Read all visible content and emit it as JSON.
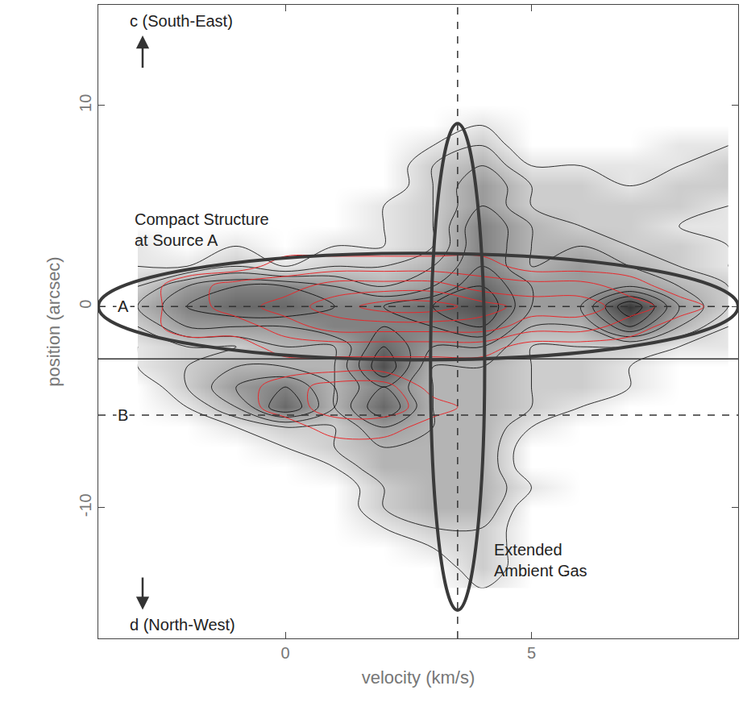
{
  "chart_data": {
    "type": "contour",
    "x_label": "velocity (km/s)",
    "y_label": "position (arcsec)",
    "xlim": [
      -3.8,
      9.2
    ],
    "ylim": [
      -16.5,
      15
    ],
    "xticks": [
      0,
      5
    ],
    "yticks": [
      -10,
      0,
      10
    ],
    "grid": false,
    "image": {
      "color": "#000000",
      "zlim": [
        0,
        9
      ],
      "levels": {
        "start": 1,
        "end": 8,
        "step": 1
      },
      "x": [
        -3,
        -2,
        -1,
        0,
        1,
        2,
        3,
        4,
        5,
        6,
        7,
        8,
        9
      ],
      "y": [
        -14,
        -13,
        -12,
        -11,
        -10,
        -9,
        -8,
        -7,
        -6,
        -5,
        -4,
        -3,
        -2,
        -1,
        0,
        1,
        2,
        3,
        4,
        5,
        6,
        7,
        8,
        9,
        10
      ],
      "z": [
        [
          0,
          0,
          0,
          0,
          0,
          0,
          0,
          1,
          0,
          0,
          0,
          0,
          0
        ],
        [
          0,
          0,
          0,
          0,
          0,
          0,
          0,
          2,
          0,
          0,
          0,
          0,
          0
        ],
        [
          0,
          0,
          0,
          0,
          0,
          0,
          1,
          2,
          0,
          0,
          0,
          0,
          0
        ],
        [
          0,
          0,
          0,
          0,
          0,
          1,
          2,
          2,
          0,
          0,
          0,
          0,
          0
        ],
        [
          0,
          0,
          0,
          0,
          0,
          2,
          3,
          3,
          0,
          0,
          0,
          0,
          0
        ],
        [
          0,
          0,
          0,
          0,
          0,
          2,
          3,
          3,
          1,
          0,
          0,
          0,
          0
        ],
        [
          0,
          0,
          0,
          0,
          1,
          3,
          3,
          3,
          0,
          0,
          0,
          0,
          0
        ],
        [
          0,
          0,
          0,
          1,
          2,
          3,
          3,
          3,
          0,
          0,
          0,
          0,
          0
        ],
        [
          0,
          0,
          1,
          2,
          2,
          4,
          3,
          3,
          1,
          0,
          0,
          0,
          0
        ],
        [
          0,
          1,
          3,
          6,
          3,
          6,
          3,
          3,
          2,
          1,
          0,
          0,
          0
        ],
        [
          0,
          2,
          4,
          5,
          3,
          5,
          3,
          3,
          2,
          2,
          1,
          0,
          0
        ],
        [
          1,
          2,
          3,
          3,
          3,
          7,
          3,
          3,
          2,
          2,
          1,
          0,
          0
        ],
        [
          1,
          2,
          2,
          3,
          3,
          6,
          4,
          4,
          2,
          2,
          2,
          1,
          1
        ],
        [
          2,
          4,
          4,
          4,
          5,
          5,
          5,
          6,
          3,
          3,
          6,
          3,
          1
        ],
        [
          3,
          5,
          6,
          6,
          5,
          5,
          6,
          7,
          4,
          4,
          8,
          4,
          2
        ],
        [
          2,
          4,
          5,
          5,
          4,
          3,
          4,
          6,
          4,
          4,
          4,
          3,
          2
        ],
        [
          1,
          1,
          2,
          1,
          2,
          2,
          3,
          5,
          3,
          4,
          3,
          2,
          1
        ],
        [
          1,
          0,
          1,
          0,
          1,
          1,
          2,
          5,
          3,
          3,
          2,
          2,
          1
        ],
        [
          0,
          0,
          0,
          0,
          0,
          1,
          2,
          5,
          3,
          2,
          2,
          1,
          1
        ],
        [
          0,
          0,
          0,
          0,
          0,
          1,
          2,
          4,
          2,
          2,
          2,
          2,
          1
        ],
        [
          0,
          0,
          0,
          0,
          0,
          0,
          2,
          4,
          2,
          2,
          1,
          2,
          2
        ],
        [
          0,
          0,
          0,
          0,
          0,
          0,
          2,
          3,
          1,
          1,
          1,
          1,
          2
        ],
        [
          0,
          0,
          0,
          0,
          0,
          0,
          1,
          2,
          0,
          0,
          0,
          1,
          1
        ],
        [
          0,
          0,
          0,
          0,
          0,
          0,
          0,
          1,
          0,
          0,
          0,
          0,
          0
        ],
        [
          0,
          0,
          0,
          0,
          0,
          0,
          0,
          0,
          0,
          0,
          0,
          0,
          0
        ]
      ]
    },
    "red_contours": {
      "color": "#e8282b",
      "levels": {
        "start": 0.5,
        "end": 4.5,
        "step": 1
      },
      "x": [
        -3,
        -2,
        -1,
        0,
        1,
        2,
        3,
        4,
        5,
        6,
        7,
        8,
        9
      ],
      "y": [
        -8,
        -7,
        -6,
        -5,
        -4,
        -3,
        -2,
        -1,
        0,
        1,
        2,
        3
      ],
      "z": [
        [
          0,
          0,
          0,
          0,
          0,
          0,
          0,
          0,
          0,
          0,
          0,
          0,
          0
        ],
        [
          0,
          0,
          0,
          0,
          0,
          0,
          0,
          0,
          0,
          0,
          0,
          0,
          0
        ],
        [
          0,
          0,
          0,
          0,
          1,
          1,
          0,
          0,
          0,
          0,
          0,
          0,
          0
        ],
        [
          0,
          0,
          0,
          1,
          2,
          2,
          1,
          0,
          0,
          0,
          0,
          0,
          0
        ],
        [
          0,
          0,
          0,
          1,
          2,
          2,
          0,
          0,
          0,
          0,
          0,
          0,
          0
        ],
        [
          0,
          0,
          0,
          0,
          0,
          0,
          0,
          0,
          0,
          0,
          0,
          0,
          0
        ],
        [
          0,
          0,
          0,
          1,
          1,
          1,
          1,
          1,
          0,
          0,
          0,
          0,
          0
        ],
        [
          0,
          1,
          1,
          2,
          3,
          3,
          3,
          3,
          2,
          2,
          1,
          0,
          0
        ],
        [
          0,
          1,
          2,
          3,
          4,
          5,
          5,
          4,
          3,
          3,
          2,
          1,
          0
        ],
        [
          0,
          1,
          2,
          2,
          3,
          3,
          3,
          2,
          2,
          2,
          1,
          0,
          0
        ],
        [
          0,
          0,
          0,
          1,
          1,
          1,
          1,
          1,
          0,
          0,
          0,
          0,
          0
        ],
        [
          0,
          0,
          0,
          0,
          0,
          0,
          0,
          0,
          0,
          0,
          0,
          0,
          0
        ]
      ]
    },
    "reference_lines": [
      {
        "axis": "y",
        "value": 0,
        "line_style": "dashed",
        "label": "A"
      },
      {
        "axis": "y",
        "value": -5.4,
        "line_style": "dashed",
        "label": "B"
      },
      {
        "axis": "y",
        "value": -2.6,
        "line_style": "solid"
      },
      {
        "axis": "x",
        "value": 3.5,
        "line_style": "dashed"
      }
    ],
    "ellipses": [
      {
        "x": 2.7,
        "y": 0,
        "rx": 6.5,
        "ry": 2.65
      },
      {
        "x": 3.5,
        "y": -3,
        "rx": 0.55,
        "ry": 12.1
      }
    ],
    "annotations": [
      {
        "text": "Compact Structure\nat Source A",
        "x": -3.1,
        "y": 3.8
      },
      {
        "text": "Extended\nAmbient Gas",
        "x": 4.2,
        "y": -12.6
      },
      {
        "text": "c (South-East)",
        "x": -3.2,
        "y": 14.2,
        "arrow": "up"
      },
      {
        "text": "d (North-West)",
        "x": -3.2,
        "y": -15.8,
        "arrow": "down"
      }
    ]
  }
}
